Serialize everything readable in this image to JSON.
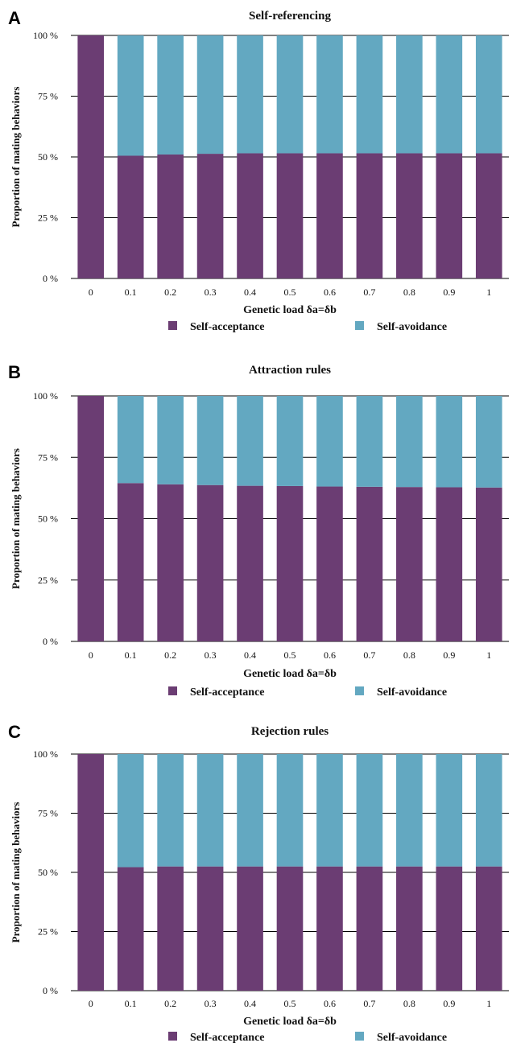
{
  "colors": {
    "self_acceptance": "#6b3d73",
    "self_avoidance": "#63a8c1",
    "grid": "#000000"
  },
  "chart_data": [
    {
      "panel": "A",
      "type": "bar",
      "stacked": true,
      "title": "Self-referencing",
      "xlabel": "Genetic load δa=δb",
      "ylabel": "Proportion of mating behaviors",
      "categories": [
        "0",
        "0.1",
        "0.2",
        "0.3",
        "0.4",
        "0.5",
        "0.6",
        "0.7",
        "0.8",
        "0.9",
        "1"
      ],
      "yticks": [
        "0 %",
        "25 %",
        "50 %",
        "75 %",
        "100 %"
      ],
      "ylim": [
        0,
        100
      ],
      "grid": true,
      "legend_position": "bottom",
      "series": [
        {
          "name": "Self-acceptance",
          "values": [
            100,
            50.5,
            51,
            51.3,
            51.5,
            51.5,
            51.5,
            51.5,
            51.5,
            51.5,
            51.5
          ]
        },
        {
          "name": "Self-avoidance",
          "values": [
            0,
            49.5,
            49,
            48.7,
            48.5,
            48.5,
            48.5,
            48.5,
            48.5,
            48.5,
            48.5
          ]
        }
      ]
    },
    {
      "panel": "B",
      "type": "bar",
      "stacked": true,
      "title": "Attraction rules",
      "xlabel": "Genetic load δa=δb",
      "ylabel": "Proportion of mating behaviors",
      "categories": [
        "0",
        "0.1",
        "0.2",
        "0.3",
        "0.4",
        "0.5",
        "0.6",
        "0.7",
        "0.8",
        "0.9",
        "1"
      ],
      "yticks": [
        "0 %",
        "25 %",
        "50 %",
        "75 %",
        "100 %"
      ],
      "ylim": [
        0,
        100
      ],
      "grid": true,
      "legend_position": "bottom",
      "series": [
        {
          "name": "Self-acceptance",
          "values": [
            100,
            64.5,
            64,
            63.7,
            63.4,
            63.3,
            63.1,
            63,
            62.9,
            62.8,
            62.7
          ]
        },
        {
          "name": "Self-avoidance",
          "values": [
            0,
            35.5,
            36,
            36.3,
            36.6,
            36.7,
            36.9,
            37,
            37.1,
            37.2,
            37.3
          ]
        }
      ]
    },
    {
      "panel": "C",
      "type": "bar",
      "stacked": true,
      "title": "Rejection rules",
      "xlabel": "Genetic load δa=δb",
      "ylabel": "Proportion of mating behaviors",
      "categories": [
        "0",
        "0.1",
        "0.2",
        "0.3",
        "0.4",
        "0.5",
        "0.6",
        "0.7",
        "0.8",
        "0.9",
        "1"
      ],
      "yticks": [
        "0 %",
        "25 %",
        "50 %",
        "75 %",
        "100 %"
      ],
      "ylim": [
        0,
        100
      ],
      "grid": true,
      "legend_position": "bottom",
      "series": [
        {
          "name": "Self-acceptance",
          "values": [
            100,
            52.2,
            52.5,
            52.5,
            52.5,
            52.5,
            52.5,
            52.5,
            52.5,
            52.5,
            52.5
          ]
        },
        {
          "name": "Self-avoidance",
          "values": [
            0,
            47.8,
            47.5,
            47.5,
            47.5,
            47.5,
            47.5,
            47.5,
            47.5,
            47.5,
            47.5
          ]
        }
      ]
    }
  ]
}
